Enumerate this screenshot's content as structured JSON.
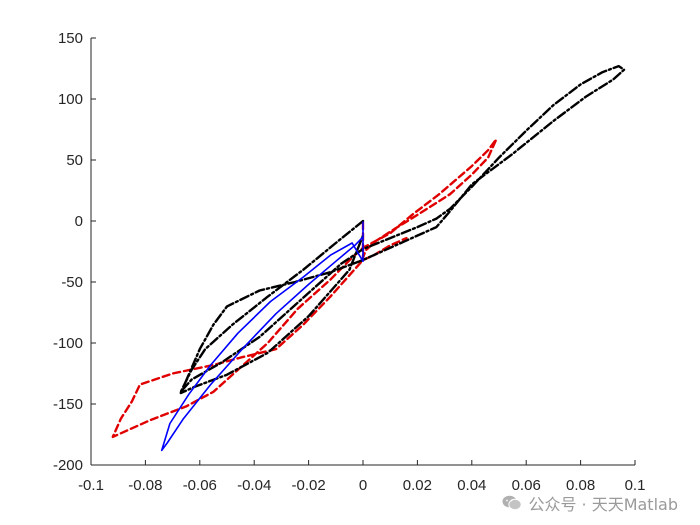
{
  "chart_data": {
    "type": "line",
    "title": "",
    "xlabel": "",
    "ylabel": "",
    "xlim": [
      -0.1,
      0.1
    ],
    "ylim": [
      -200,
      150
    ],
    "x_ticks": [
      -0.1,
      -0.08,
      -0.06,
      -0.04,
      -0.02,
      0,
      0.02,
      0.04,
      0.06,
      0.08,
      0.1
    ],
    "x_tick_labels": [
      "-0.1",
      "-0.08",
      "-0.06",
      "-0.04",
      "-0.02",
      "0",
      "0.02",
      "0.04",
      "0.06",
      "0.08",
      "0.1"
    ],
    "y_ticks": [
      -200,
      -150,
      -100,
      -50,
      0,
      50,
      100,
      150
    ],
    "y_tick_labels": [
      "-200",
      "-150",
      "-100",
      "-50",
      "0",
      "50",
      "100",
      "150"
    ],
    "grid": false,
    "legend": "none",
    "series": [
      {
        "color": "#e00000",
        "line_style": "dashed",
        "x": [
          0,
          0,
          0.001,
          0.005,
          0.012,
          0.02,
          0.032,
          0.04,
          0.046,
          0.049,
          0.046,
          0.04,
          0.028,
          0.018,
          0.01,
          0,
          -0.004,
          -0.012,
          -0.024,
          -0.035,
          -0.045,
          -0.055,
          -0.065,
          -0.078,
          -0.092,
          -0.089,
          -0.085,
          -0.082,
          -0.07,
          -0.055,
          -0.045,
          -0.032,
          -0.022,
          -0.012,
          -0.004,
          0,
          0.004,
          0.01,
          0.016
        ],
        "y": [
          -1,
          -30,
          -24,
          -16,
          -6,
          5,
          22,
          38,
          52,
          67,
          58,
          45,
          22,
          5,
          -10,
          -22,
          -30,
          -48,
          -72,
          -100,
          -120,
          -140,
          -152,
          -163,
          -177,
          -162,
          -148,
          -134,
          -125,
          -118,
          -112,
          -105,
          -85,
          -62,
          -42,
          -32,
          -28,
          -20,
          -14
        ]
      },
      {
        "color": "#000000",
        "line_style": "dash-dot",
        "x": [
          0,
          -0.01,
          -0.022,
          -0.035,
          -0.048,
          -0.058,
          -0.063,
          -0.067,
          -0.063,
          -0.052,
          -0.038,
          -0.028,
          -0.018,
          -0.008,
          0,
          0.01,
          0.02,
          0.027,
          0.032,
          0.04,
          0.05,
          0.06,
          0.07,
          0.08,
          0.088,
          0.094,
          0.096,
          0.092,
          0.082,
          0.07,
          0.055,
          0.04,
          0.032,
          0.027,
          0.015,
          0,
          -0.012,
          -0.025,
          -0.038,
          -0.05,
          -0.055,
          -0.06,
          -0.067,
          -0.062,
          -0.05,
          -0.035,
          -0.02,
          -0.005,
          0
        ],
        "y": [
          0,
          -18,
          -40,
          -62,
          -85,
          -105,
          -122,
          -140,
          -130,
          -116,
          -95,
          -75,
          -55,
          -35,
          -23,
          -14,
          -5,
          2,
          10,
          28,
          52,
          74,
          95,
          112,
          122,
          127,
          124,
          116,
          102,
          82,
          55,
          30,
          8,
          -5,
          -17,
          -32,
          -42,
          -50,
          -57,
          -70,
          -85,
          -105,
          -141,
          -136,
          -126,
          -108,
          -78,
          -40,
          -12
        ]
      },
      {
        "color": "#0000ff",
        "line_style": "solid",
        "x": [
          0,
          0,
          0,
          0,
          -0.004,
          -0.012,
          -0.022,
          -0.034,
          -0.046,
          -0.056,
          -0.064,
          -0.071,
          -0.074,
          -0.072,
          -0.066,
          -0.056,
          -0.044,
          -0.032,
          -0.02,
          -0.01,
          -0.003,
          0,
          0
        ],
        "y": [
          -1,
          -12,
          -25,
          -33,
          -18,
          -28,
          -46,
          -66,
          -92,
          -118,
          -142,
          -166,
          -188,
          -182,
          -162,
          -134,
          -104,
          -76,
          -52,
          -33,
          -20,
          -13,
          -1
        ]
      }
    ]
  },
  "watermark": {
    "icon": "wechat-icon",
    "text": "公众号 · 天天Matlab"
  }
}
